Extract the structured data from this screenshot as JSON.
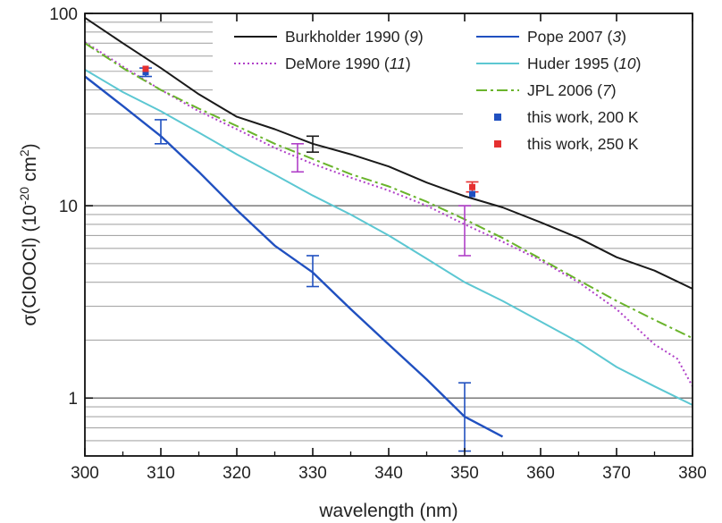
{
  "chart_data": {
    "type": "line",
    "xlabel": "wavelength (nm)",
    "ylabel_parts": {
      "prefix": "σ(ClOOCl) (10",
      "exp1": "-20",
      "mid": " cm",
      "exp2": "2",
      "suffix": ")"
    },
    "xlim": [
      300,
      380
    ],
    "ylim": [
      0.5,
      100
    ],
    "yscale": "log",
    "grid": "horizontal",
    "xticks": [
      300,
      310,
      320,
      330,
      340,
      350,
      360,
      370,
      380
    ],
    "yticks": [
      {
        "value": 1,
        "label": "1"
      },
      {
        "value": 10,
        "label": "10"
      },
      {
        "value": 100,
        "label": "100"
      }
    ],
    "legend_location": "top-right",
    "series": [
      {
        "key": "burkholder",
        "name": "Burkholder 1990",
        "ref": "9",
        "color": "#1a1a1a",
        "style": "solid",
        "legend_column": "left",
        "x": [
          300,
          305,
          310,
          315,
          320,
          325,
          330,
          335,
          340,
          345,
          350,
          355,
          360,
          365,
          370,
          375,
          380
        ],
        "y": [
          95,
          70,
          52,
          38,
          29,
          25,
          21,
          18.5,
          16,
          13.2,
          11.2,
          9.8,
          8.2,
          6.8,
          5.4,
          4.6,
          3.7
        ]
      },
      {
        "key": "demore",
        "name": "DeMore 1990",
        "ref": "11",
        "color": "#b040c8",
        "style": "dotted",
        "legend_column": "left",
        "x": [
          300,
          305,
          310,
          315,
          320,
          325,
          330,
          335,
          340,
          345,
          350,
          355,
          360,
          365,
          370,
          375,
          378,
          380
        ],
        "y": [
          71,
          53,
          40,
          31,
          25,
          20,
          16.5,
          14,
          12,
          10,
          8,
          6.5,
          5.2,
          4,
          2.9,
          1.9,
          1.6,
          1.15
        ]
      },
      {
        "key": "pope",
        "name": "Pope 2007",
        "ref": "3",
        "color": "#2050c0",
        "style": "solid",
        "legend_column": "right",
        "x": [
          300,
          305,
          310,
          315,
          320,
          325,
          330,
          335,
          340,
          345,
          350,
          355
        ],
        "y": [
          47,
          33,
          23,
          15,
          9.5,
          6.2,
          4.5,
          2.9,
          1.9,
          1.25,
          0.8,
          0.63
        ]
      },
      {
        "key": "huder",
        "name": "Huder 1995",
        "ref": "10",
        "color": "#5cc7d2",
        "style": "solid",
        "legend_column": "right",
        "x": [
          300,
          305,
          310,
          315,
          320,
          325,
          330,
          335,
          340,
          345,
          350,
          355,
          360,
          365,
          370,
          375,
          380
        ],
        "y": [
          51,
          39,
          31,
          24,
          18.5,
          14.5,
          11.3,
          9,
          7,
          5.3,
          4,
          3.2,
          2.5,
          1.95,
          1.45,
          1.15,
          0.92
        ]
      },
      {
        "key": "jpl",
        "name": "JPL 2006",
        "ref": "7",
        "color": "#6ab42c",
        "style": "dashdot",
        "legend_column": "right",
        "x": [
          300,
          305,
          310,
          315,
          320,
          325,
          330,
          335,
          340,
          345,
          350,
          355,
          360,
          365,
          370,
          375,
          380
        ],
        "y": [
          70,
          52,
          40,
          32,
          26,
          21,
          17.5,
          14.6,
          12.6,
          10.5,
          8.5,
          6.8,
          5.3,
          4.1,
          3.2,
          2.55,
          2.05
        ]
      }
    ],
    "points": [
      {
        "key": "this200",
        "name": "this work, 200 K",
        "color": "#2050c0",
        "x": [
          308,
          351
        ],
        "y": [
          49.5,
          11.5
        ]
      },
      {
        "key": "this250",
        "name": "this work, 250 K",
        "color": "#e53030",
        "x": [
          308,
          351
        ],
        "y": [
          51.5,
          12.5
        ]
      }
    ],
    "error_bars": [
      {
        "series": "pope",
        "x": 310,
        "y_low": 21,
        "y_high": 28,
        "color": "#2050c0"
      },
      {
        "series": "pope",
        "x": 330,
        "y_low": 3.8,
        "y_high": 5.5,
        "color": "#2050c0"
      },
      {
        "series": "pope",
        "x": 350,
        "y_low": 0.53,
        "y_high": 1.2,
        "color": "#2050c0"
      },
      {
        "series": "burkholder",
        "x": 330,
        "y_low": 19,
        "y_high": 23,
        "color": "#1a1a1a"
      },
      {
        "series": "demore",
        "x": 328,
        "y_low": 15,
        "y_high": 21,
        "color": "#b040c8"
      },
      {
        "series": "demore",
        "x": 350,
        "y_low": 5.5,
        "y_high": 10,
        "color": "#b040c8"
      },
      {
        "series": "this200",
        "x": 308,
        "y_low": 47,
        "y_high": 52,
        "color": "#2050c0"
      },
      {
        "series": "this250",
        "x": 351,
        "y_low": 11.8,
        "y_high": 13.3,
        "color": "#e53030"
      }
    ]
  }
}
